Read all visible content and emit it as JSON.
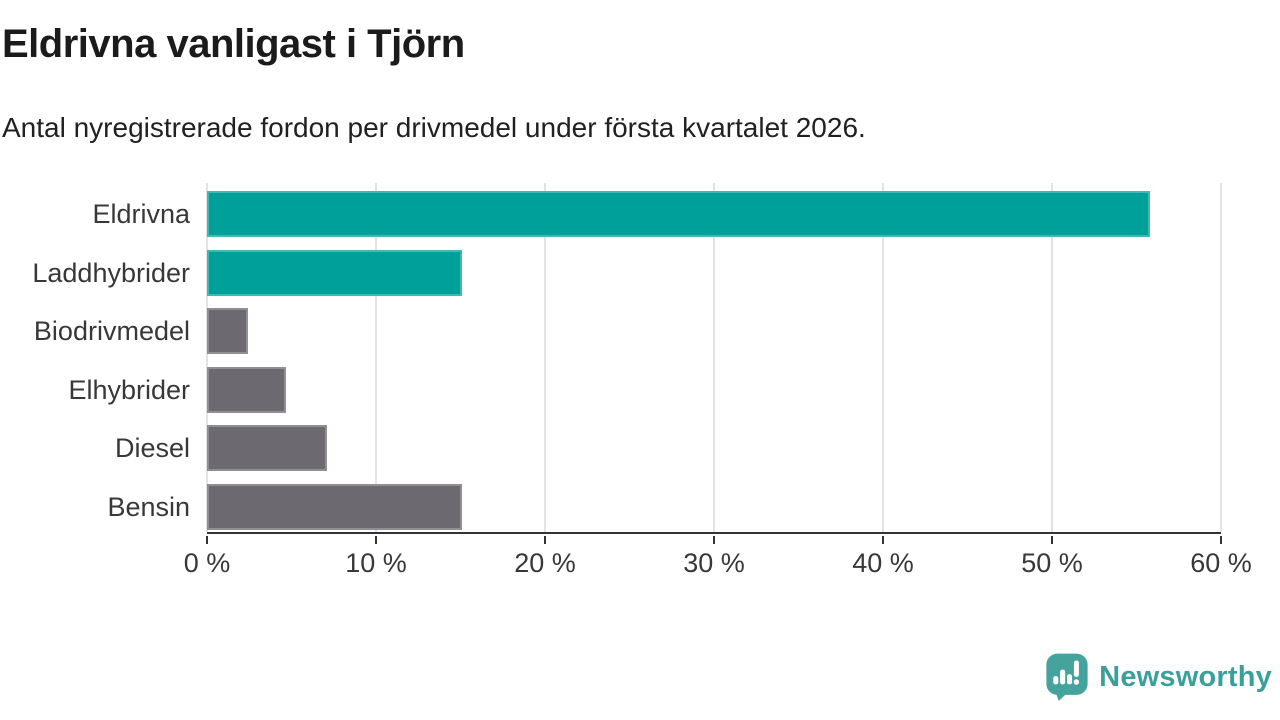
{
  "header": {
    "title": "Eldrivna vanligast i Tjörn",
    "subtitle": "Antal nyregistrerade fordon per drivmedel under första kvartalet 2026."
  },
  "chart_data": {
    "type": "bar",
    "orientation": "horizontal",
    "title": "Eldrivna vanligast i Tjörn",
    "subtitle": "Antal nyregistrerade fordon per drivmedel under första kvartalet 2026.",
    "categories": [
      "Eldrivna",
      "Laddhybrider",
      "Biodrivmedel",
      "Elhybrider",
      "Diesel",
      "Bensin"
    ],
    "values": [
      55.8,
      15.1,
      2.4,
      4.7,
      7.1,
      15.1
    ],
    "unit": "%",
    "bar_colors": [
      "#00a09a",
      "#00a09a",
      "#6c6a70",
      "#6c6a70",
      "#6c6a70",
      "#6c6a70"
    ],
    "xlim": [
      0,
      60
    ],
    "x_tick_values": [
      0,
      10,
      20,
      30,
      40,
      50,
      60
    ],
    "x_tick_labels": [
      "0 %",
      "10 %",
      "20 %",
      "30 %",
      "40 %",
      "50 %",
      "60 %"
    ],
    "ylabel": "",
    "xlabel": "",
    "grid": true,
    "legend": false
  },
  "colors": {
    "accent_teal": "#00a09a",
    "bar_gray": "#6c6a70",
    "gridline": "#e3e3e3",
    "axis": "#333333",
    "logo_teal": "#44a39d"
  },
  "footer": {
    "brand": "Newsworthy",
    "logo_icon": "newsworthy-speech-bubble-bar-chart-icon"
  }
}
